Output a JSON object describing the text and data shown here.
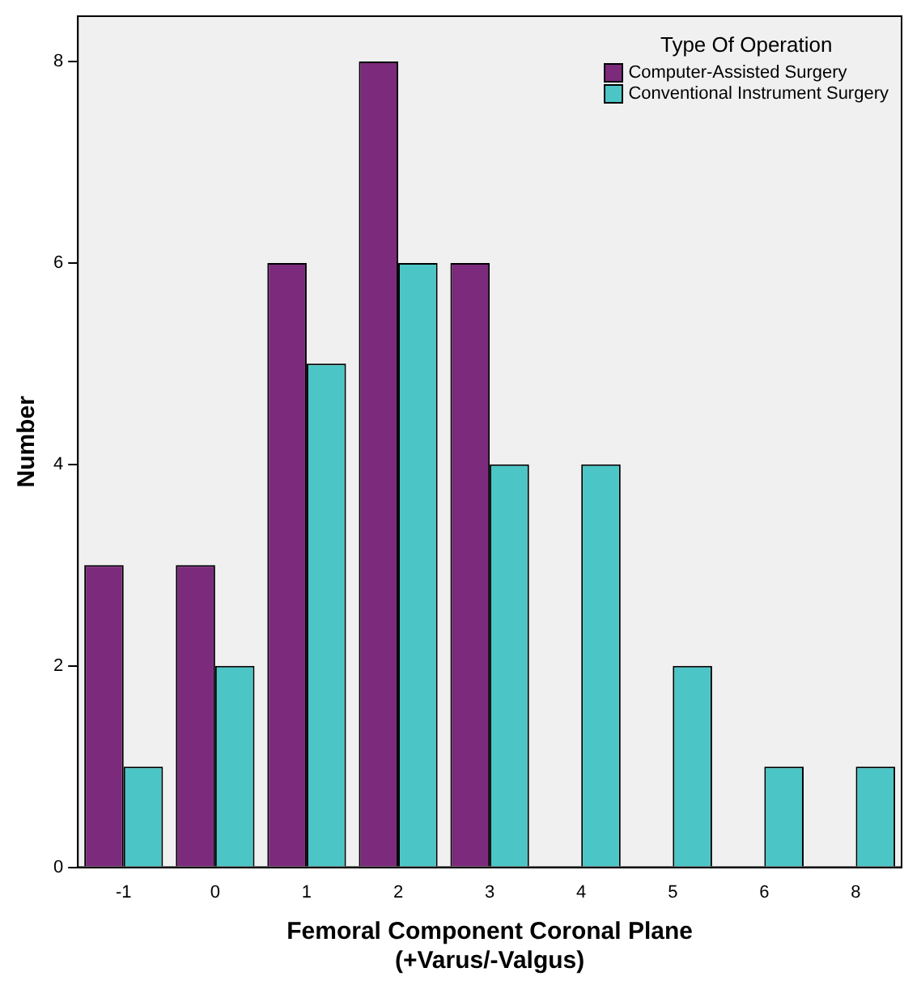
{
  "chart_data": {
    "type": "bar",
    "xlabel": "Femoral Component Coronal Plane\n(+Varus/-Valgus)",
    "ylabel": "Number",
    "legend_title": "Type Of Operation",
    "categories": [
      "-1",
      "0",
      "1",
      "2",
      "3",
      "4",
      "5",
      "6",
      "8"
    ],
    "series": [
      {
        "name": "Computer-Assisted Surgery",
        "color": "#7b2a7c",
        "values": [
          3,
          3,
          6,
          8,
          6,
          0,
          0,
          0,
          0
        ]
      },
      {
        "name": "Conventional Instrument Surgery",
        "color": "#4cc5c6",
        "values": [
          1,
          2,
          5,
          6,
          4,
          4,
          2,
          1,
          1
        ]
      }
    ],
    "ylim": [
      0,
      8.45
    ],
    "yticks": [
      0,
      2,
      4,
      6,
      8
    ],
    "grid": false,
    "legend": "top right"
  }
}
